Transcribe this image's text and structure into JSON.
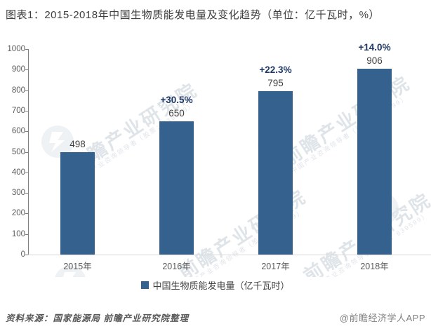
{
  "title": "图表1：2015-2018年中国生物质能发电量及变化趋势（单位：亿千瓦时，%）",
  "chart_data": {
    "type": "bar",
    "categories": [
      "2015年",
      "2016年",
      "2017年",
      "2018年"
    ],
    "series": [
      {
        "name": "中国生物质能发电量（亿千瓦时）",
        "values": [
          498,
          650,
          795,
          906
        ]
      }
    ],
    "growth_labels": [
      "",
      "+30.5%",
      "+22.3%",
      "+14.0%"
    ],
    "title": "图表1：2015-2018年中国生物质能发电量及变化趋势（单位：亿千瓦时，%）",
    "xlabel": "",
    "ylabel": "",
    "ylim": [
      0,
      1000
    ],
    "yticks": [
      0,
      100,
      200,
      300,
      400,
      500,
      600,
      700,
      800,
      900,
      1000
    ],
    "grid": false,
    "legend_position": "bottom",
    "bar_color": "#34618e",
    "value_label_color": "#404040",
    "growth_label_color": "#1f3864"
  },
  "legend": {
    "label": "中国生物质能发电量（亿千瓦时）"
  },
  "watermark": {
    "text": "前瞻产业研究院",
    "subtext": "中国产业咨询领导者（股票：839599）"
  },
  "footer": {
    "source": "资料来源：国家能源局  前瞻产业研究院整理",
    "credit": "@前瞻经济学人APP"
  }
}
